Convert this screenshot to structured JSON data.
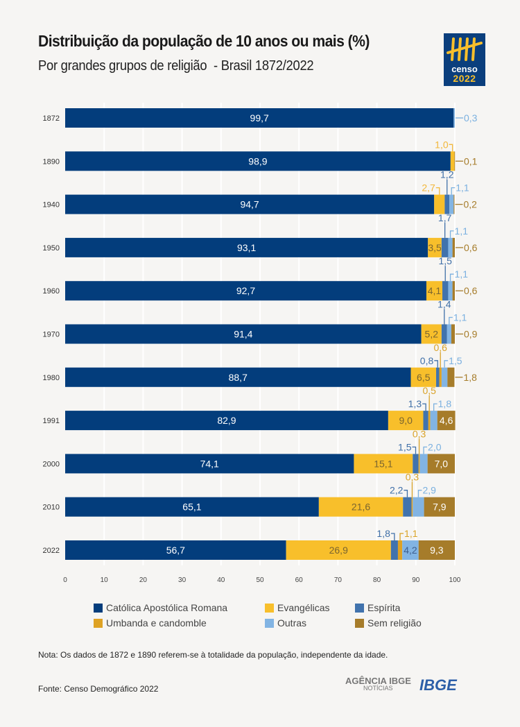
{
  "header": {
    "title": "Distribuição da população de 10 anos ou mais (%)",
    "subtitle": "Por grandes grupos de religião  - Brasil 1872/2022",
    "logo_text": [
      "censo",
      "2022"
    ]
  },
  "chart_data": {
    "type": "bar",
    "orientation": "horizontal",
    "stacked": true,
    "categories": [
      "1872",
      "1890",
      "1940",
      "1950",
      "1960",
      "1970",
      "1980",
      "1991",
      "2000",
      "2010",
      "2022"
    ],
    "xlim": [
      0,
      100
    ],
    "xticks": [
      0,
      10,
      20,
      30,
      40,
      50,
      60,
      70,
      80,
      90,
      100
    ],
    "grid": true,
    "legend_placement": "bottom",
    "series": [
      {
        "name": "Católica Apostólica Romana",
        "color": "#033d7c",
        "values": [
          99.7,
          98.9,
          94.7,
          93.1,
          92.7,
          91.4,
          88.7,
          82.9,
          74.1,
          65.1,
          56.7
        ]
      },
      {
        "name": "Evangélicas",
        "color": "#f8bf2b",
        "values": [
          null,
          1.0,
          2.7,
          3.5,
          4.1,
          5.2,
          6.5,
          9.0,
          15.1,
          21.6,
          26.9
        ]
      },
      {
        "name": "Espírita",
        "color": "#4173ad",
        "values": [
          null,
          null,
          1.2,
          1.7,
          1.5,
          1.4,
          0.8,
          1.3,
          1.5,
          2.2,
          1.8
        ]
      },
      {
        "name": "Umbanda e candomble",
        "color": "#dea224",
        "values": [
          null,
          null,
          null,
          null,
          null,
          null,
          0.6,
          0.5,
          0.3,
          0.3,
          1.1
        ]
      },
      {
        "name": "Outras",
        "color": "#82b4e3",
        "values": [
          0.3,
          null,
          1.1,
          1.1,
          1.1,
          1.1,
          1.5,
          1.8,
          2.0,
          2.9,
          4.2
        ]
      },
      {
        "name": "Sem religião",
        "color": "#a67c2a",
        "values": [
          null,
          0.1,
          0.2,
          0.6,
          0.6,
          0.9,
          1.8,
          4.6,
          7.0,
          7.9,
          9.3
        ]
      }
    ]
  },
  "footer": {
    "note": "Nota: Os dados de 1872 e 1890 referem-se à totalidade da população, independente da idade.",
    "source": "Fonte: Censo Demográfico 2022",
    "agencia_logo": [
      "AGÊNCIA IBGE",
      "NOTÍCIAS"
    ],
    "ibge_logo": "IBGE"
  }
}
